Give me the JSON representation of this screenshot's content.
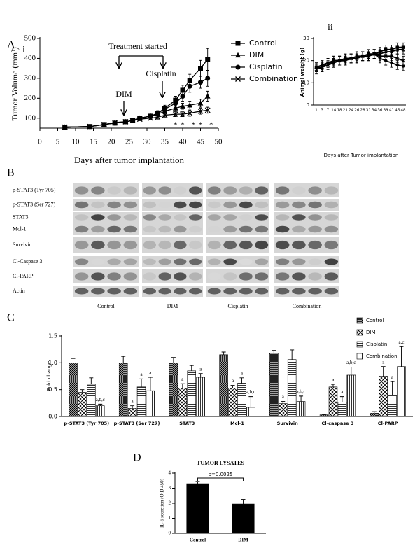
{
  "chart_data": [
    {
      "type": "line",
      "panel": "A",
      "subpanel": "i",
      "xlabel": "Days after tumor implantation",
      "ylabel": "Tumor Volume (mm³)",
      "annotations": [
        "Treatment started",
        "DIM",
        "Cisplatin"
      ],
      "sig_label": "*",
      "sig_x": [
        38,
        40,
        43,
        45,
        48
      ],
      "x": [
        7,
        14,
        18,
        21,
        24,
        26,
        28,
        31,
        33,
        35,
        38,
        40,
        42,
        45,
        47
      ],
      "xlim": [
        0,
        50
      ],
      "xticks": [
        0,
        5,
        10,
        15,
        20,
        25,
        30,
        35,
        40,
        45,
        50
      ],
      "ylim": [
        50,
        500
      ],
      "yticks": [
        100,
        200,
        300,
        400,
        500
      ],
      "legend": "outside-right",
      "series": [
        {
          "name": "Control",
          "marker": "square",
          "color": "#000",
          "values": [
            55,
            58,
            68,
            75,
            82,
            88,
            100,
            110,
            125,
            150,
            190,
            240,
            290,
            350,
            395
          ],
          "errors": [
            5,
            5,
            5,
            5,
            5,
            5,
            10,
            10,
            12,
            15,
            20,
            25,
            30,
            40,
            55
          ]
        },
        {
          "name": "DIM",
          "marker": "triangle",
          "color": "#000",
          "values": [
            55,
            58,
            68,
            78,
            82,
            88,
            100,
            110,
            120,
            135,
            150,
            160,
            165,
            175,
            210
          ],
          "errors": [
            5,
            5,
            5,
            5,
            5,
            5,
            8,
            8,
            10,
            12,
            15,
            15,
            20,
            20,
            25
          ]
        },
        {
          "name": "Cisplatin",
          "marker": "circle",
          "color": "#000",
          "values": [
            55,
            58,
            68,
            75,
            82,
            88,
            100,
            110,
            125,
            145,
            175,
            210,
            260,
            280,
            300
          ],
          "errors": [
            5,
            5,
            5,
            5,
            5,
            5,
            10,
            10,
            12,
            15,
            20,
            25,
            30,
            30,
            40
          ]
        },
        {
          "name": "Combination",
          "marker": "x",
          "color": "#000",
          "values": [
            55,
            58,
            68,
            78,
            82,
            88,
            95,
            100,
            105,
            115,
            120,
            120,
            125,
            135,
            140
          ],
          "errors": [
            5,
            5,
            5,
            5,
            5,
            5,
            8,
            8,
            10,
            10,
            12,
            12,
            15,
            15,
            15
          ]
        }
      ]
    },
    {
      "type": "line",
      "subpanel": "ii",
      "xlabel": "Days after Tumor implantation",
      "ylabel": "Animal weight (g)",
      "categories": [
        "1",
        "3",
        "7",
        "14",
        "18",
        "21",
        "24",
        "26",
        "28",
        "31",
        "34",
        "36",
        "39",
        "41",
        "46",
        "48"
      ],
      "ylim": [
        0,
        30
      ],
      "yticks": [
        0,
        10,
        20,
        30
      ],
      "series": [
        {
          "marker": "square",
          "color": "#000",
          "values": [
            17,
            18,
            19,
            20,
            20,
            21,
            21,
            22,
            22,
            23,
            23,
            24,
            25,
            25,
            26,
            26
          ],
          "errors": [
            2,
            2,
            2,
            2,
            2,
            2,
            2,
            2,
            2,
            2,
            2,
            2,
            2,
            2,
            2,
            2
          ]
        },
        {
          "marker": "triangle",
          "color": "#000",
          "values": [
            17,
            17,
            19,
            19,
            20,
            20,
            21,
            21,
            22,
            22,
            23,
            23,
            24,
            24,
            25,
            25
          ],
          "errors": [
            2,
            2,
            2,
            2,
            2,
            2,
            2,
            2,
            2,
            2,
            2,
            2,
            2,
            2,
            2,
            2
          ]
        },
        {
          "marker": "circle",
          "color": "#000",
          "values": [
            17,
            18,
            19,
            20,
            20,
            21,
            21,
            21,
            22,
            22,
            23,
            21,
            20,
            19,
            18,
            17.5
          ],
          "errors": [
            2,
            2,
            2,
            2,
            2,
            2,
            2,
            2,
            2,
            2,
            2,
            2,
            2,
            2,
            2,
            2
          ]
        },
        {
          "marker": "x",
          "color": "#000",
          "values": [
            16,
            17,
            18,
            19,
            20,
            20,
            21,
            21,
            22,
            22,
            23,
            22,
            22,
            22,
            21,
            20
          ],
          "errors": [
            2,
            2,
            2,
            2,
            2,
            2,
            2,
            2,
            2,
            2,
            2,
            2,
            2,
            2,
            2,
            2
          ]
        }
      ]
    },
    {
      "type": "bar",
      "panel": "C",
      "ylabel": "Fold change",
      "categories": [
        "p-STAT3 (Tyr 705)",
        "p-STAT3 (Ser 727)",
        "STAT3",
        "Mcl-1",
        "Survivin",
        "Cl-caspase 3",
        "Cl-PARP"
      ],
      "ylim": [
        0,
        1.5
      ],
      "yticks": [
        {
          "value": 0,
          "label": "0.0"
        },
        0.5,
        {
          "value": 1,
          "label": "1.0"
        },
        1.5
      ],
      "legend": "top-right",
      "series": [
        {
          "name": "Control",
          "fill": "crosshatch",
          "values": [
            1.0,
            1.0,
            1.0,
            1.15,
            1.18,
            0.03,
            0.06
          ],
          "errors": [
            0.08,
            0.12,
            0.1,
            0.05,
            0.05,
            0.01,
            0.03
          ]
        },
        {
          "name": "DIM",
          "fill": "checker",
          "values": [
            0.45,
            0.15,
            0.53,
            0.53,
            0.24,
            0.55,
            0.75
          ],
          "errors": [
            0.05,
            0.05,
            0.08,
            0.05,
            0.04,
            0.05,
            0.18
          ],
          "annotations": [
            null,
            "a",
            "a",
            "a",
            "a",
            "a",
            "a"
          ]
        },
        {
          "name": "Cisplatin",
          "fill": "hlines",
          "values": [
            0.6,
            0.55,
            0.85,
            0.62,
            1.06,
            0.27,
            0.4
          ],
          "errors": [
            0.12,
            0.15,
            0.1,
            0.1,
            0.18,
            0.1,
            0.25
          ],
          "annotations": [
            null,
            "a",
            null,
            "a",
            null,
            "a",
            "a"
          ]
        },
        {
          "name": "Combination",
          "fill": "vlines",
          "values": [
            0.2,
            0.48,
            0.73,
            0.17,
            0.28,
            0.77,
            0.93
          ],
          "errors": [
            0.03,
            0.25,
            0.07,
            0.2,
            0.1,
            0.15,
            0.37
          ],
          "annotations": [
            "a,b,c",
            "a",
            "a",
            "a,b,c",
            "a,b,c",
            "a,b,c",
            "a,c"
          ]
        }
      ]
    },
    {
      "type": "bar",
      "panel": "D",
      "title": "TUMOR LYSATES",
      "ylabel": "IL-6 secretion (O.D 450)",
      "annotation": "p=0.0025",
      "categories": [
        "Control",
        "DIM"
      ],
      "values": [
        3.3,
        1.95
      ],
      "errors": [
        0.15,
        0.3
      ],
      "color": "#000",
      "ylim": [
        0,
        4
      ],
      "yticks": [
        0,
        1,
        2,
        3,
        4
      ]
    }
  ],
  "blot": {
    "panel": "B",
    "rows": [
      "p-STAT3 (Tyr 705)",
      "p-STAT3 (Ser 727)",
      "STAT3",
      "Mcl-1",
      "Survivin",
      "Cl-Caspase 3",
      "Cl-PARP",
      "Actin"
    ],
    "groups": [
      "Control",
      "DIM",
      "Cisplatin",
      "Combination"
    ]
  }
}
